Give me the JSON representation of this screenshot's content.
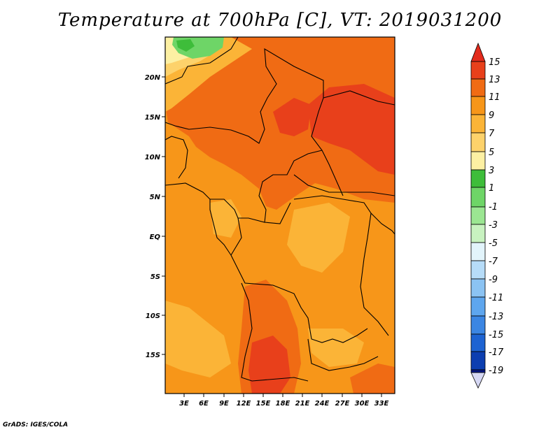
{
  "title": "Temperature at 700hPa [C], VT: 2019031200",
  "credit": "GrADS: IGES/COLA",
  "lat_labels": [
    "20N",
    "15N",
    "10N",
    "5N",
    "EQ",
    "5S",
    "10S",
    "15S"
  ],
  "lon_labels": [
    "3E",
    "6E",
    "9E",
    "12E",
    "15E",
    "18E",
    "21E",
    "24E",
    "27E",
    "30E",
    "33E"
  ],
  "colorbar": {
    "labels": [
      "15",
      "13",
      "11",
      "9",
      "7",
      "5",
      "3",
      "1",
      "-1",
      "-3",
      "-5",
      "-7",
      "-9",
      "-11",
      "-13",
      "-15",
      "-17",
      "-19"
    ],
    "colors": {
      "c15": "#e8401b",
      "c13": "#f06b14",
      "c11": "#f79619",
      "c9": "#fbb437",
      "c7": "#fdd26b",
      "c5": "#fdf0a3",
      "c3": "#3ebd3a",
      "c1": "#6ed567",
      "cm1": "#9be692",
      "cm3": "#c8f2c0",
      "cm5": "#e2f4fb",
      "cm7": "#b6dcf8",
      "cm9": "#8bc3f3",
      "cm11": "#5ea6ee",
      "cm13": "#3b86e3",
      "cm15": "#1d63d2",
      "cm17": "#0c3eb0",
      "cm19": "#061784",
      "below": "#d6d8f4",
      "above": "#e32b1c"
    }
  }
}
